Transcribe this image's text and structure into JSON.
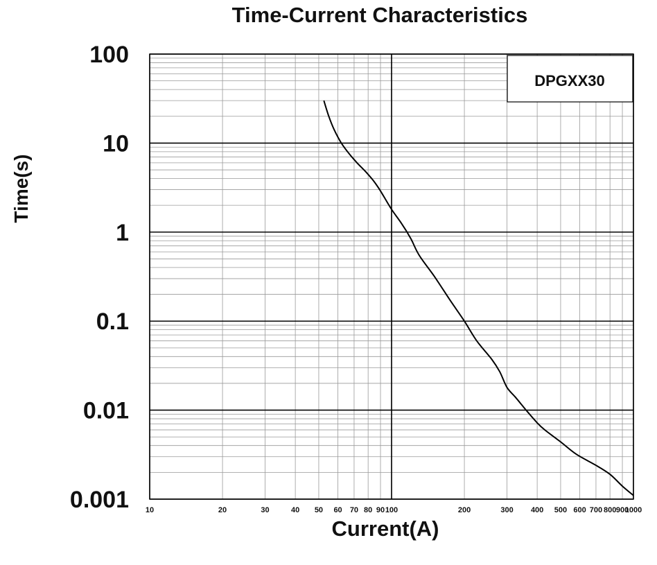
{
  "chart_data": {
    "type": "line",
    "title": "Time-Current Characteristics",
    "xlabel": "Current(A)",
    "ylabel": "Time(s)",
    "x_scale": "log",
    "y_scale": "log",
    "xlim": [
      10,
      1000
    ],
    "ylim": [
      0.001,
      100
    ],
    "grid": true,
    "legend_position": "top-right",
    "legend_text": "DPGXX30",
    "x_ticks": [
      {
        "value": 10,
        "label": "10"
      },
      {
        "value": 20,
        "label": "20"
      },
      {
        "value": 30,
        "label": "30"
      },
      {
        "value": 40,
        "label": "40"
      },
      {
        "value": 50,
        "label": "50"
      },
      {
        "value": 60,
        "label": "60"
      },
      {
        "value": 70,
        "label": "70"
      },
      {
        "value": 80,
        "label": "80"
      },
      {
        "value": 90,
        "label": "90"
      },
      {
        "value": 100,
        "label": "100"
      },
      {
        "value": 200,
        "label": "200"
      },
      {
        "value": 300,
        "label": "300"
      },
      {
        "value": 400,
        "label": "400"
      },
      {
        "value": 500,
        "label": "500"
      },
      {
        "value": 600,
        "label": "600"
      },
      {
        "value": 700,
        "label": "700"
      },
      {
        "value": 800,
        "label": "800"
      },
      {
        "value": 900,
        "label": "900"
      },
      {
        "value": 1000,
        "label": "1000"
      }
    ],
    "y_ticks": [
      {
        "value": 100,
        "label": "100"
      },
      {
        "value": 10,
        "label": "10"
      },
      {
        "value": 1,
        "label": "1"
      },
      {
        "value": 0.1,
        "label": "0.1"
      },
      {
        "value": 0.01,
        "label": "0.01"
      },
      {
        "value": 0.001,
        "label": "0.001"
      }
    ],
    "series": [
      {
        "color": "#000000",
        "points": [
          {
            "x": 52.5,
            "y": 30
          },
          {
            "x": 55,
            "y": 20
          },
          {
            "x": 58,
            "y": 14
          },
          {
            "x": 62,
            "y": 10
          },
          {
            "x": 67,
            "y": 7.5
          },
          {
            "x": 72,
            "y": 6
          },
          {
            "x": 78,
            "y": 4.8
          },
          {
            "x": 84,
            "y": 3.8
          },
          {
            "x": 90,
            "y": 2.9
          },
          {
            "x": 100,
            "y": 1.8
          },
          {
            "x": 110,
            "y": 1.25
          },
          {
            "x": 120,
            "y": 0.85
          },
          {
            "x": 130,
            "y": 0.55
          },
          {
            "x": 150,
            "y": 0.32
          },
          {
            "x": 175,
            "y": 0.17
          },
          {
            "x": 200,
            "y": 0.1
          },
          {
            "x": 225,
            "y": 0.06
          },
          {
            "x": 260,
            "y": 0.037
          },
          {
            "x": 280,
            "y": 0.027
          },
          {
            "x": 300,
            "y": 0.018
          },
          {
            "x": 325,
            "y": 0.014
          },
          {
            "x": 360,
            "y": 0.01
          },
          {
            "x": 400,
            "y": 0.0072
          },
          {
            "x": 430,
            "y": 0.006
          },
          {
            "x": 500,
            "y": 0.0044
          },
          {
            "x": 580,
            "y": 0.0032
          },
          {
            "x": 700,
            "y": 0.0024
          },
          {
            "x": 800,
            "y": 0.0019
          },
          {
            "x": 900,
            "y": 0.0014
          },
          {
            "x": 1000,
            "y": 0.0011
          }
        ]
      }
    ]
  }
}
